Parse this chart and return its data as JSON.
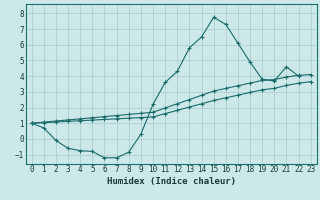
{
  "xlabel": "Humidex (Indice chaleur)",
  "xlim": [
    -0.5,
    23.5
  ],
  "ylim": [
    -1.6,
    8.6
  ],
  "xticks": [
    0,
    1,
    2,
    3,
    4,
    5,
    6,
    7,
    8,
    9,
    10,
    11,
    12,
    13,
    14,
    15,
    16,
    17,
    18,
    19,
    20,
    21,
    22,
    23
  ],
  "yticks": [
    -1,
    0,
    1,
    2,
    3,
    4,
    5,
    6,
    7,
    8
  ],
  "background_color": "#cde8e8",
  "line_color": "#1a6b6b",
  "grid_color": "#a8cccc",
  "line1_x": [
    0,
    1,
    2,
    3,
    4,
    5,
    6,
    7,
    8,
    9,
    10,
    11,
    12,
    13,
    14,
    15,
    16,
    17,
    18,
    19,
    20,
    21,
    22
  ],
  "line1_y": [
    1.0,
    0.7,
    -0.1,
    -0.6,
    -0.75,
    -0.8,
    -1.2,
    -1.2,
    -0.85,
    0.3,
    2.2,
    3.6,
    4.3,
    5.8,
    6.5,
    7.75,
    7.3,
    6.1,
    4.9,
    3.8,
    3.7,
    4.6,
    4.0
  ],
  "line2_x": [
    0,
    1,
    2,
    3,
    4,
    5,
    6,
    7,
    8,
    9,
    10,
    11,
    12,
    13,
    14,
    15,
    16,
    17,
    18,
    19,
    20,
    21,
    22,
    23
  ],
  "line2_y": [
    1.0,
    1.07,
    1.14,
    1.21,
    1.28,
    1.35,
    1.42,
    1.49,
    1.56,
    1.63,
    1.7,
    1.97,
    2.24,
    2.51,
    2.78,
    3.05,
    3.22,
    3.39,
    3.56,
    3.73,
    3.78,
    3.95,
    4.05,
    4.1
  ],
  "line3_x": [
    0,
    1,
    2,
    3,
    4,
    5,
    6,
    7,
    8,
    9,
    10,
    11,
    12,
    13,
    14,
    15,
    16,
    17,
    18,
    19,
    20,
    21,
    22,
    23
  ],
  "line3_y": [
    1.0,
    1.04,
    1.08,
    1.12,
    1.16,
    1.2,
    1.24,
    1.28,
    1.32,
    1.36,
    1.4,
    1.61,
    1.82,
    2.03,
    2.24,
    2.45,
    2.62,
    2.79,
    2.96,
    3.13,
    3.22,
    3.41,
    3.55,
    3.65
  ]
}
